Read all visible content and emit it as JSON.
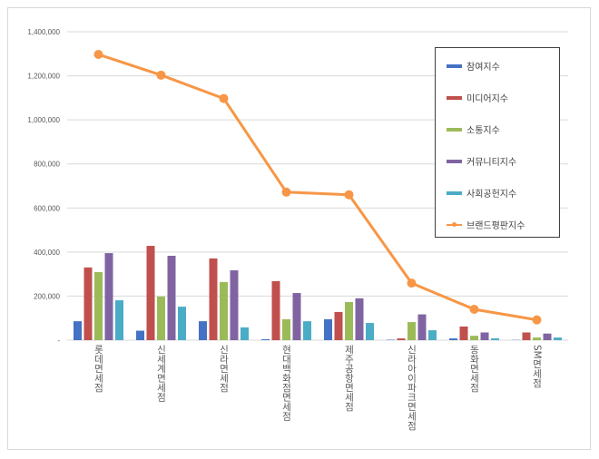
{
  "chart_data": {
    "type": "bar+line",
    "categories": [
      "롯데면세점",
      "신세계면세점",
      "신라면세점",
      "현대백화점면세점",
      "제주공항면세점",
      "신라아이파크면세점",
      "동화면세점",
      "SM면세점"
    ],
    "ylim": [
      0,
      1400000
    ],
    "yticks": [
      "-",
      "200,000",
      "400,000",
      "600,000",
      "800,000",
      "1,000,000",
      "1,200,000",
      "1,400,000"
    ],
    "grid": true,
    "legend_position": "right",
    "series": [
      {
        "name": "참여지수",
        "type": "bar",
        "color": "#4472c4",
        "values": [
          86000,
          43000,
          86000,
          4000,
          95000,
          2000,
          8000,
          1000
        ]
      },
      {
        "name": "미디어지수",
        "type": "bar",
        "color": "#c0504d",
        "values": [
          330000,
          428000,
          371000,
          268000,
          128000,
          8000,
          62000,
          35000
        ]
      },
      {
        "name": "소통지수",
        "type": "bar",
        "color": "#9bbb59",
        "values": [
          309000,
          198000,
          264000,
          95000,
          173000,
          82000,
          20000,
          12000
        ]
      },
      {
        "name": "커뮤니티지수",
        "type": "bar",
        "color": "#8064a2",
        "values": [
          395000,
          383000,
          317000,
          214000,
          190000,
          117000,
          35000,
          30000
        ]
      },
      {
        "name": "사회공헌지수",
        "type": "bar",
        "color": "#4bacc6",
        "values": [
          181000,
          152000,
          58000,
          86000,
          78000,
          45000,
          8000,
          12000
        ]
      },
      {
        "name": "브랜드평판지수",
        "type": "line",
        "color": "#f79646",
        "values": [
          1297000,
          1203000,
          1097000,
          672000,
          660000,
          259000,
          140000,
          92000
        ]
      }
    ]
  }
}
